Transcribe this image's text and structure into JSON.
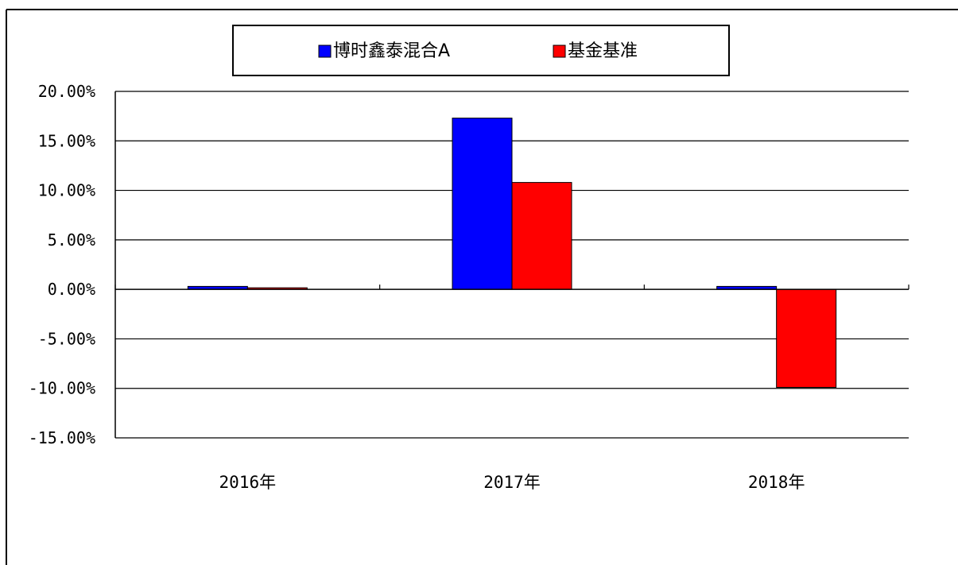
{
  "chart_data": {
    "type": "bar",
    "categories": [
      "2016年",
      "2017年",
      "2018年"
    ],
    "series": [
      {
        "name": "博时鑫泰混合A",
        "color": "#0000FF",
        "values": [
          0.3,
          17.3,
          0.3
        ]
      },
      {
        "name": "基金基准",
        "color": "#FF0000",
        "values": [
          0.0,
          10.8,
          -9.9
        ]
      }
    ],
    "ylim": [
      -15,
      20
    ],
    "yticks": [
      20,
      15,
      10,
      5,
      0,
      -5,
      -10,
      -15
    ],
    "ytick_labels": [
      "20.00%",
      "15.00%",
      "10.00%",
      "5.00%",
      "0.00%",
      "-5.00%",
      "-10.00%",
      "-15.00%"
    ],
    "grid": true,
    "legend_position": "top",
    "title": "",
    "xlabel": "",
    "ylabel": ""
  }
}
